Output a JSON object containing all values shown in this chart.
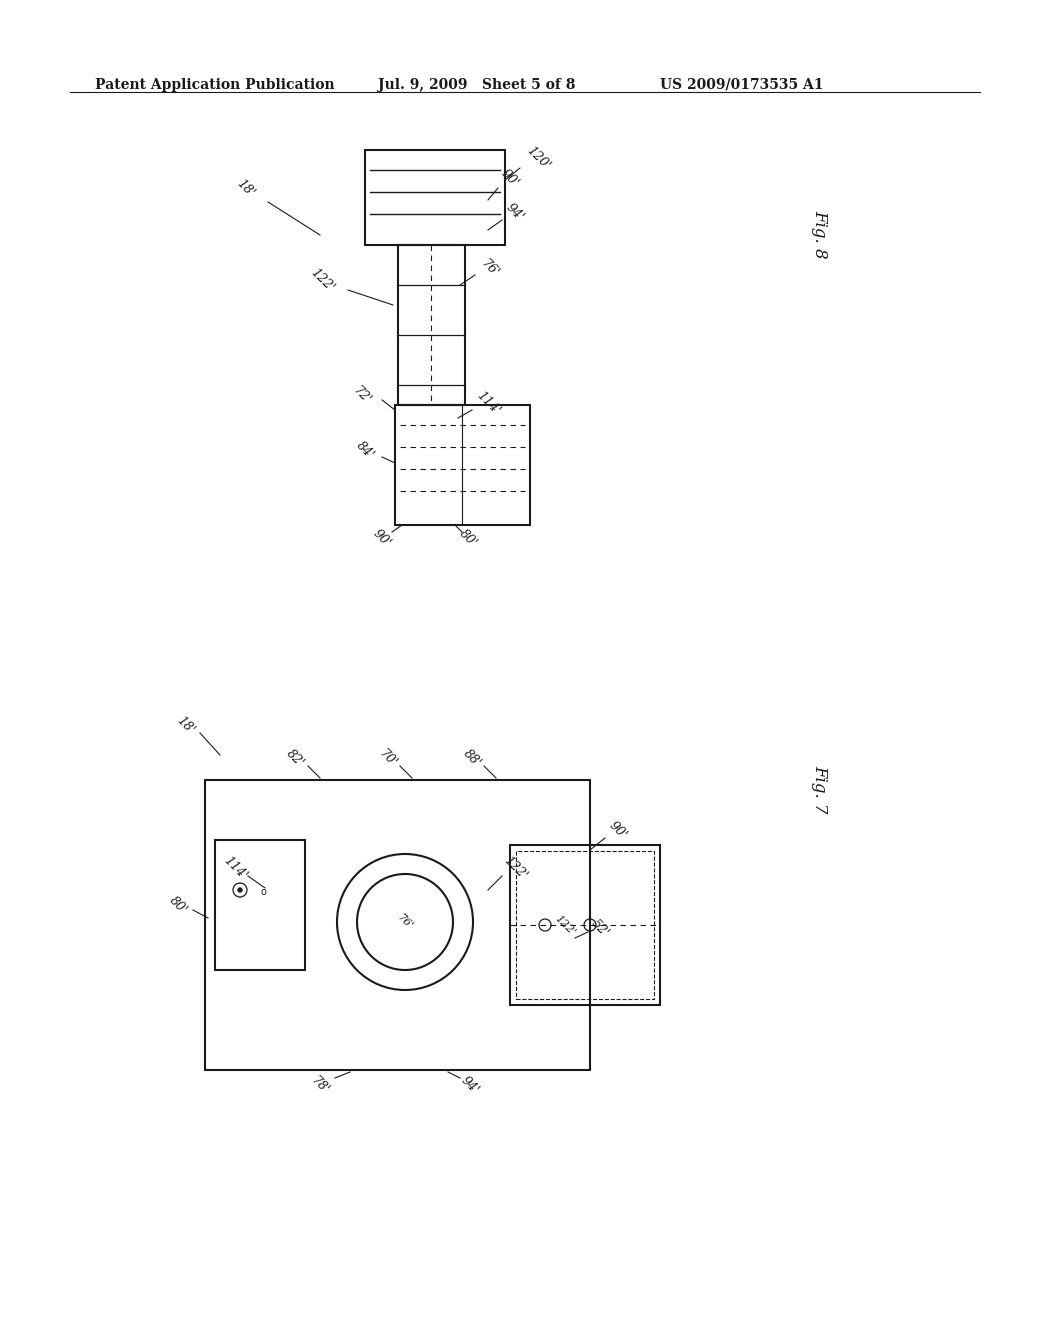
{
  "background_color": "#ffffff",
  "header_text": "Patent Application Publication",
  "header_date": "Jul. 9, 2009",
  "header_sheet": "Sheet 5 of 8",
  "header_patent": "US 2009/0173535 A1",
  "fig8_label": "Fig. 8",
  "fig7_label": "Fig. 7"
}
